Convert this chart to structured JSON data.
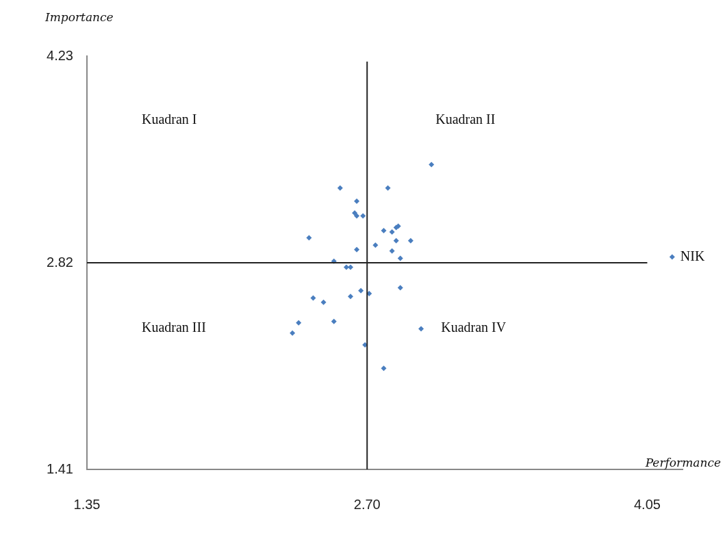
{
  "chart_data": {
    "type": "scatter",
    "xlabel": "Performance",
    "ylabel": "Importance",
    "x": [
      3.01,
      2.57,
      2.8,
      2.65,
      2.64,
      2.65,
      2.68,
      2.78,
      2.82,
      2.84,
      2.85,
      2.42,
      2.84,
      2.91,
      2.74,
      2.65,
      2.82,
      2.86,
      2.54,
      2.6,
      2.62,
      2.86,
      2.67,
      2.71,
      2.62,
      2.44,
      2.49,
      2.54,
      2.37,
      2.34,
      2.96,
      2.69,
      2.78,
      4.17
    ],
    "values": [
      3.49,
      3.33,
      3.33,
      3.24,
      3.16,
      3.14,
      3.14,
      3.04,
      3.03,
      3.06,
      3.07,
      2.99,
      2.97,
      2.97,
      2.94,
      2.91,
      2.9,
      2.85,
      2.83,
      2.79,
      2.79,
      2.65,
      2.63,
      2.61,
      2.59,
      2.58,
      2.55,
      2.42,
      2.41,
      2.34,
      2.37,
      2.26,
      2.1,
      2.86
    ],
    "color": "#4a7ebf",
    "marker": "diamond",
    "grid": false,
    "legend": false,
    "xlim": [
      1.35,
      4.22
    ],
    "xticks": [
      1.35,
      {
        "value": 2.7,
        "label": "2.70"
      },
      4.05
    ],
    "ylim": [
      1.41,
      4.23
    ],
    "yticks": [
      1.41,
      2.82,
      4.23
    ],
    "ref_lines": [
      {
        "axis": "x",
        "value": 2.7
      },
      {
        "axis": "y",
        "value": 2.82
      }
    ],
    "annotations": [
      "Kuadran I",
      "Kuadran II",
      "Kuadran III",
      "Kuadran IV",
      {
        "text": "NIK",
        "x": 4.17,
        "y": 2.86
      }
    ]
  }
}
